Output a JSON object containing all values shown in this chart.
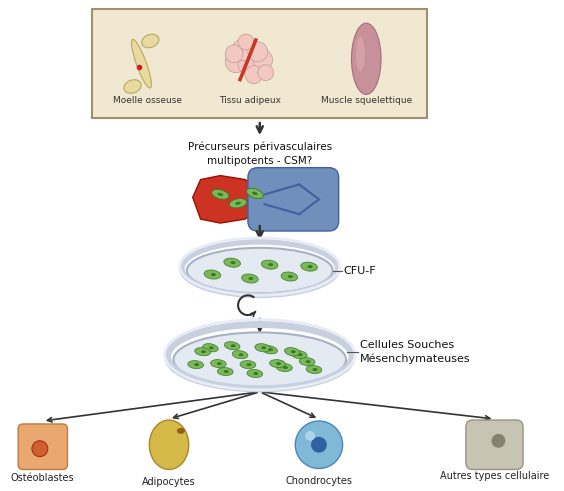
{
  "bg_color": "#ffffff",
  "box_bg": "#f0e8d0",
  "box_border": "#a09070",
  "box_labels": [
    "Moelle osseuse",
    "Tissu adipeux",
    "Muscle squelettique"
  ],
  "arrow_color": "#333333",
  "text_precurseur": "Précurseurs périvasculaires\nmultipotents - CSM?",
  "text_cfuf": "CFU-F",
  "text_csm": "Cellules Souches\nMésenchymateuses",
  "cell_labels": [
    "Ostéoblastes",
    "Adipocytes",
    "Chondrocytes",
    "Autres types cellulaire"
  ],
  "petri_rim": "#c8d0e0",
  "petri_inside": "#e4eaf2",
  "petri_shade": "#a8b0c4",
  "cell_green": "#7ab858",
  "cell_green_dark": "#3a7828",
  "bone_color": "#e8daa0",
  "bone_edge": "#b8a860",
  "adipose_color": "#f2c8c0",
  "adipose_edge": "#c09898",
  "muscle_color": "#c89098",
  "muscle_light": "#dba8b0",
  "muscle_edge": "#a07080",
  "vessel_red": "#cc3322",
  "vessel_red_edge": "#991100",
  "vessel_blue": "#7090bb",
  "vessel_blue_edge": "#4060a0",
  "osteoblast_color": "#e8a870",
  "osteoblast_edge": "#c07840",
  "osteoblast_nuc": "#d06030",
  "adipocyte_color": "#d4b848",
  "adipocyte_edge": "#a88828",
  "adipocyte_nuc": "#906018",
  "chondrocyte_color": "#80b8d8",
  "chondrocyte_edge": "#4888b8",
  "chondrocyte_nuc": "#3060a0",
  "autre_color": "#c8c4b4",
  "autre_edge": "#989480",
  "autre_nuc": "#888070"
}
